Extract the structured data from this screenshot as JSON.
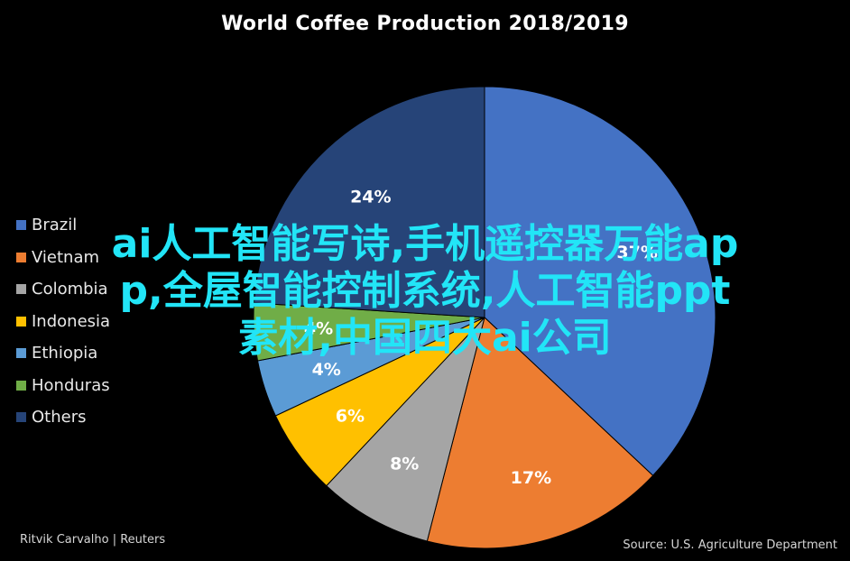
{
  "chart_data": {
    "type": "pie",
    "title": "World Coffee Production 2018/2019",
    "categories": [
      "Brazil",
      "Vietnam",
      "Colombia",
      "Indonesia",
      "Ethiopia",
      "Honduras",
      "Others"
    ],
    "values": [
      37,
      17,
      8,
      6,
      4,
      4,
      24
    ],
    "value_labels": [
      "37%",
      "17%",
      "8%",
      "6%",
      "4%",
      "4%",
      "24%"
    ],
    "colors": [
      "#4472C4",
      "#ED7D31",
      "#A5A5A5",
      "#FFC000",
      "#5B9BD5",
      "#70AD47",
      "#264478"
    ],
    "legend": "left"
  },
  "credit": "Ritvik Carvalho | Reuters",
  "source": "Source: U.S. Agriculture Department",
  "overlay_lines": [
    "ai人工智能写诗,手机遥控器万能ap",
    "p,全屋智能控制系统,人工智能ppt",
    "素材,中国四大ai公司"
  ]
}
